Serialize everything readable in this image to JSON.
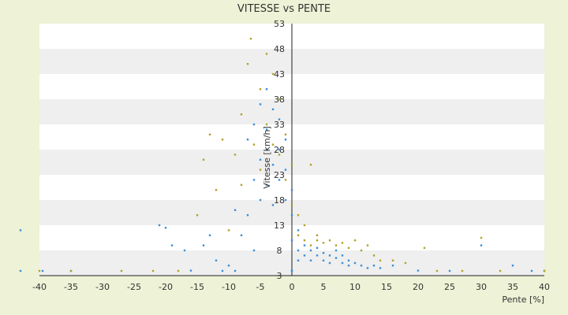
{
  "chart_data": {
    "type": "scatter",
    "title": "VITESSE vs PENTE",
    "xlabel": "Pente [%]",
    "ylabel": "Vitesse [km/h]",
    "xlim": [
      -40,
      40
    ],
    "ylim": [
      3,
      53
    ],
    "x_ticks": [
      -40,
      -35,
      -30,
      -25,
      -20,
      -15,
      -10,
      -5,
      0,
      5,
      10,
      15,
      20,
      25,
      30,
      35,
      40
    ],
    "y_ticks": [
      3,
      8,
      13,
      18,
      23,
      28,
      33,
      38,
      43,
      48,
      53
    ],
    "grid": "horizontal bands",
    "legend": "none",
    "colors": {
      "series_a": "#3a8fd9",
      "series_b": "#b0a226",
      "band": "#efefef",
      "plot_bg": "#ffffff",
      "page_bg": "#eef2d6",
      "axis": "#222222"
    },
    "series": [
      {
        "color": "#3a8fd9",
        "points": [
          [
            -43,
            12
          ],
          [
            -43,
            1
          ],
          [
            -39.5,
            1.5
          ],
          [
            -35,
            1
          ],
          [
            -21,
            13
          ],
          [
            -20,
            12.5
          ],
          [
            -19,
            9
          ],
          [
            -17,
            8
          ],
          [
            -16,
            4
          ],
          [
            -14,
            9
          ],
          [
            -13,
            11
          ],
          [
            -12,
            6
          ],
          [
            -11,
            2
          ],
          [
            -10,
            5
          ],
          [
            -9,
            16
          ],
          [
            -9,
            3
          ],
          [
            -8,
            11
          ],
          [
            -7,
            30
          ],
          [
            -7,
            15
          ],
          [
            -6,
            33
          ],
          [
            -6,
            22
          ],
          [
            -6,
            8
          ],
          [
            -5,
            37
          ],
          [
            -5,
            26
          ],
          [
            -5,
            18
          ],
          [
            -4,
            40
          ],
          [
            -4,
            32
          ],
          [
            -4,
            28
          ],
          [
            -4,
            21
          ],
          [
            -3,
            36
          ],
          [
            -3,
            25
          ],
          [
            -3,
            17
          ],
          [
            -2,
            34
          ],
          [
            -2,
            28
          ],
          [
            -2,
            22
          ],
          [
            -1,
            30
          ],
          [
            -1,
            24
          ],
          [
            -1,
            18
          ],
          [
            0,
            20
          ],
          [
            0,
            15
          ],
          [
            0,
            10
          ],
          [
            0,
            4
          ],
          [
            0,
            2
          ],
          [
            1,
            12
          ],
          [
            1,
            8
          ],
          [
            1,
            6
          ],
          [
            2,
            9
          ],
          [
            2,
            7
          ],
          [
            3,
            8
          ],
          [
            3,
            6
          ],
          [
            4,
            7
          ],
          [
            4,
            8.5
          ],
          [
            5,
            6
          ],
          [
            5,
            7.5
          ],
          [
            6,
            7
          ],
          [
            6,
            5.5
          ],
          [
            7,
            8
          ],
          [
            7,
            6.5
          ],
          [
            8,
            5.5
          ],
          [
            8,
            7
          ],
          [
            9,
            6
          ],
          [
            9,
            5
          ],
          [
            10,
            5.5
          ],
          [
            11,
            5
          ],
          [
            12,
            4.5
          ],
          [
            13,
            5
          ],
          [
            14,
            4.5
          ],
          [
            16,
            5
          ],
          [
            20,
            4
          ],
          [
            25,
            3
          ],
          [
            30,
            9
          ],
          [
            35,
            5
          ],
          [
            38,
            2
          ],
          [
            40,
            1.5
          ]
        ]
      },
      {
        "color": "#b0a226",
        "points": [
          [
            -40,
            1
          ],
          [
            -35,
            1.5
          ],
          [
            -27,
            2
          ],
          [
            -22,
            2
          ],
          [
            -18,
            3
          ],
          [
            -15,
            15
          ],
          [
            -14,
            26
          ],
          [
            -13,
            31
          ],
          [
            -12,
            20
          ],
          [
            -11,
            30
          ],
          [
            -10,
            12
          ],
          [
            -9,
            27
          ],
          [
            -8,
            35
          ],
          [
            -8,
            21
          ],
          [
            -7,
            45
          ],
          [
            -6.5,
            50
          ],
          [
            -6,
            29
          ],
          [
            -5,
            40
          ],
          [
            -5,
            24
          ],
          [
            -4,
            47
          ],
          [
            -4,
            33
          ],
          [
            -3,
            43
          ],
          [
            -3,
            29
          ],
          [
            -2,
            27
          ],
          [
            -2,
            38
          ],
          [
            -1,
            22
          ],
          [
            -1,
            31
          ],
          [
            0,
            17
          ],
          [
            0,
            25
          ],
          [
            1,
            15
          ],
          [
            1,
            11
          ],
          [
            2,
            10
          ],
          [
            2,
            13
          ],
          [
            3,
            25
          ],
          [
            3,
            9
          ],
          [
            4,
            10
          ],
          [
            4,
            11
          ],
          [
            5,
            9.5
          ],
          [
            6,
            10
          ],
          [
            7,
            9
          ],
          [
            8,
            9.5
          ],
          [
            9,
            8.5
          ],
          [
            10,
            10
          ],
          [
            11,
            8
          ],
          [
            12,
            9
          ],
          [
            13,
            7
          ],
          [
            14,
            6
          ],
          [
            16,
            6
          ],
          [
            18,
            5.5
          ],
          [
            21,
            8.5
          ],
          [
            23,
            2
          ],
          [
            27,
            2.5
          ],
          [
            30,
            10.5
          ],
          [
            33,
            2
          ],
          [
            40,
            2.5
          ]
        ]
      }
    ]
  }
}
